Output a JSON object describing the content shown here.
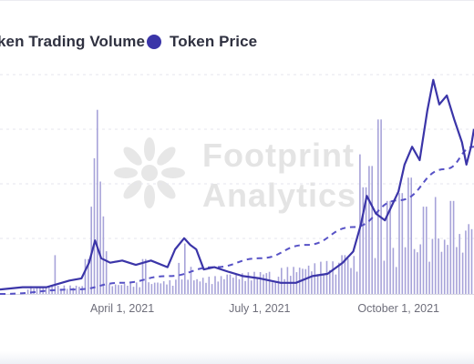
{
  "legend": {
    "volume_label": "ken Trading Volume",
    "price_label": "Token Price"
  },
  "watermark": {
    "line1": "Footprint",
    "line2": "Analytics"
  },
  "colors": {
    "price": "#3b35a8",
    "volume": "#a7a3d9",
    "trend": "#5752c6",
    "grid": "#e6e6ee",
    "tick_text": "#6e6e7a"
  },
  "chart_data": {
    "type": "line",
    "title": "",
    "xlabel": "",
    "ylabel": "",
    "x_ticks": [
      "April 1, 2021",
      "July 1, 2021",
      "October 1, 2021"
    ],
    "x_tick_dates": [
      "2021-04-01",
      "2021-07-01",
      "2021-10-01"
    ],
    "x_range": [
      "2021-01-10",
      "2021-11-20"
    ],
    "y_range_relative": [
      0,
      100
    ],
    "grid": "horizontal dashed",
    "legend_placement": "top-left",
    "series": [
      {
        "name": "Token Price",
        "kind": "line",
        "points": [
          [
            "2021-01-10",
            2
          ],
          [
            "2021-01-25",
            3
          ],
          [
            "2021-02-10",
            3
          ],
          [
            "2021-02-25",
            6
          ],
          [
            "2021-03-05",
            7
          ],
          [
            "2021-03-10",
            14
          ],
          [
            "2021-03-14",
            24
          ],
          [
            "2021-03-18",
            16
          ],
          [
            "2021-03-24",
            14
          ],
          [
            "2021-04-01",
            15
          ],
          [
            "2021-04-10",
            13
          ],
          [
            "2021-04-20",
            15
          ],
          [
            "2021-05-01",
            12
          ],
          [
            "2021-05-06",
            20
          ],
          [
            "2021-05-12",
            25
          ],
          [
            "2021-05-16",
            22
          ],
          [
            "2021-05-20",
            20
          ],
          [
            "2021-05-25",
            11
          ],
          [
            "2021-06-01",
            12
          ],
          [
            "2021-06-10",
            10
          ],
          [
            "2021-06-20",
            8
          ],
          [
            "2021-07-01",
            7
          ],
          [
            "2021-07-15",
            5
          ],
          [
            "2021-07-25",
            5
          ],
          [
            "2021-08-05",
            8
          ],
          [
            "2021-08-15",
            9
          ],
          [
            "2021-08-25",
            14
          ],
          [
            "2021-09-01",
            19
          ],
          [
            "2021-09-06",
            31
          ],
          [
            "2021-09-10",
            44
          ],
          [
            "2021-09-16",
            36
          ],
          [
            "2021-09-22",
            33
          ],
          [
            "2021-10-01",
            46
          ],
          [
            "2021-10-05",
            58
          ],
          [
            "2021-10-10",
            66
          ],
          [
            "2021-10-15",
            60
          ],
          [
            "2021-10-20",
            82
          ],
          [
            "2021-10-24",
            96
          ],
          [
            "2021-10-28",
            85
          ],
          [
            "2021-11-02",
            89
          ],
          [
            "2021-11-07",
            78
          ],
          [
            "2021-11-12",
            68
          ],
          [
            "2021-11-15",
            58
          ],
          [
            "2021-11-18",
            66
          ],
          [
            "2021-11-20",
            74
          ]
        ]
      },
      {
        "name": "",
        "kind": "trend",
        "style": "dashed",
        "points": [
          [
            "2021-01-10",
            0
          ],
          [
            "2021-03-01",
            2
          ],
          [
            "2021-04-01",
            5
          ],
          [
            "2021-05-01",
            8
          ],
          [
            "2021-06-01",
            12
          ],
          [
            "2021-07-01",
            16
          ],
          [
            "2021-08-01",
            22
          ],
          [
            "2021-09-01",
            30
          ],
          [
            "2021-10-01",
            42
          ],
          [
            "2021-11-01",
            56
          ],
          [
            "2021-11-20",
            66
          ]
        ]
      },
      {
        "name": "Trading Volume",
        "kind": "bar",
        "bars": [
          [
            "2021-02-15",
            20
          ],
          [
            "2021-03-08",
            18
          ],
          [
            "2021-03-10",
            45
          ],
          [
            "2021-03-12",
            70
          ],
          [
            "2021-03-14",
            95
          ],
          [
            "2021-03-16",
            58
          ],
          [
            "2021-03-18",
            40
          ],
          [
            "2021-03-20",
            22
          ],
          [
            "2021-04-15",
            18
          ],
          [
            "2021-05-08",
            16
          ],
          [
            "2021-05-12",
            26
          ],
          [
            "2021-05-16",
            14
          ],
          [
            "2021-06-10",
            10
          ],
          [
            "2021-07-10",
            6
          ],
          [
            "2021-08-20",
            10
          ],
          [
            "2021-08-25",
            20
          ],
          [
            "2021-09-05",
            72
          ],
          [
            "2021-09-08",
            55
          ],
          [
            "2021-09-12",
            66
          ],
          [
            "2021-09-18",
            90
          ],
          [
            "2021-09-24",
            48
          ],
          [
            "2021-10-02",
            52
          ],
          [
            "2021-10-08",
            60
          ],
          [
            "2021-10-18",
            45
          ],
          [
            "2021-10-25",
            50
          ],
          [
            "2021-11-05",
            48
          ],
          [
            "2021-11-16",
            36
          ]
        ]
      }
    ]
  }
}
